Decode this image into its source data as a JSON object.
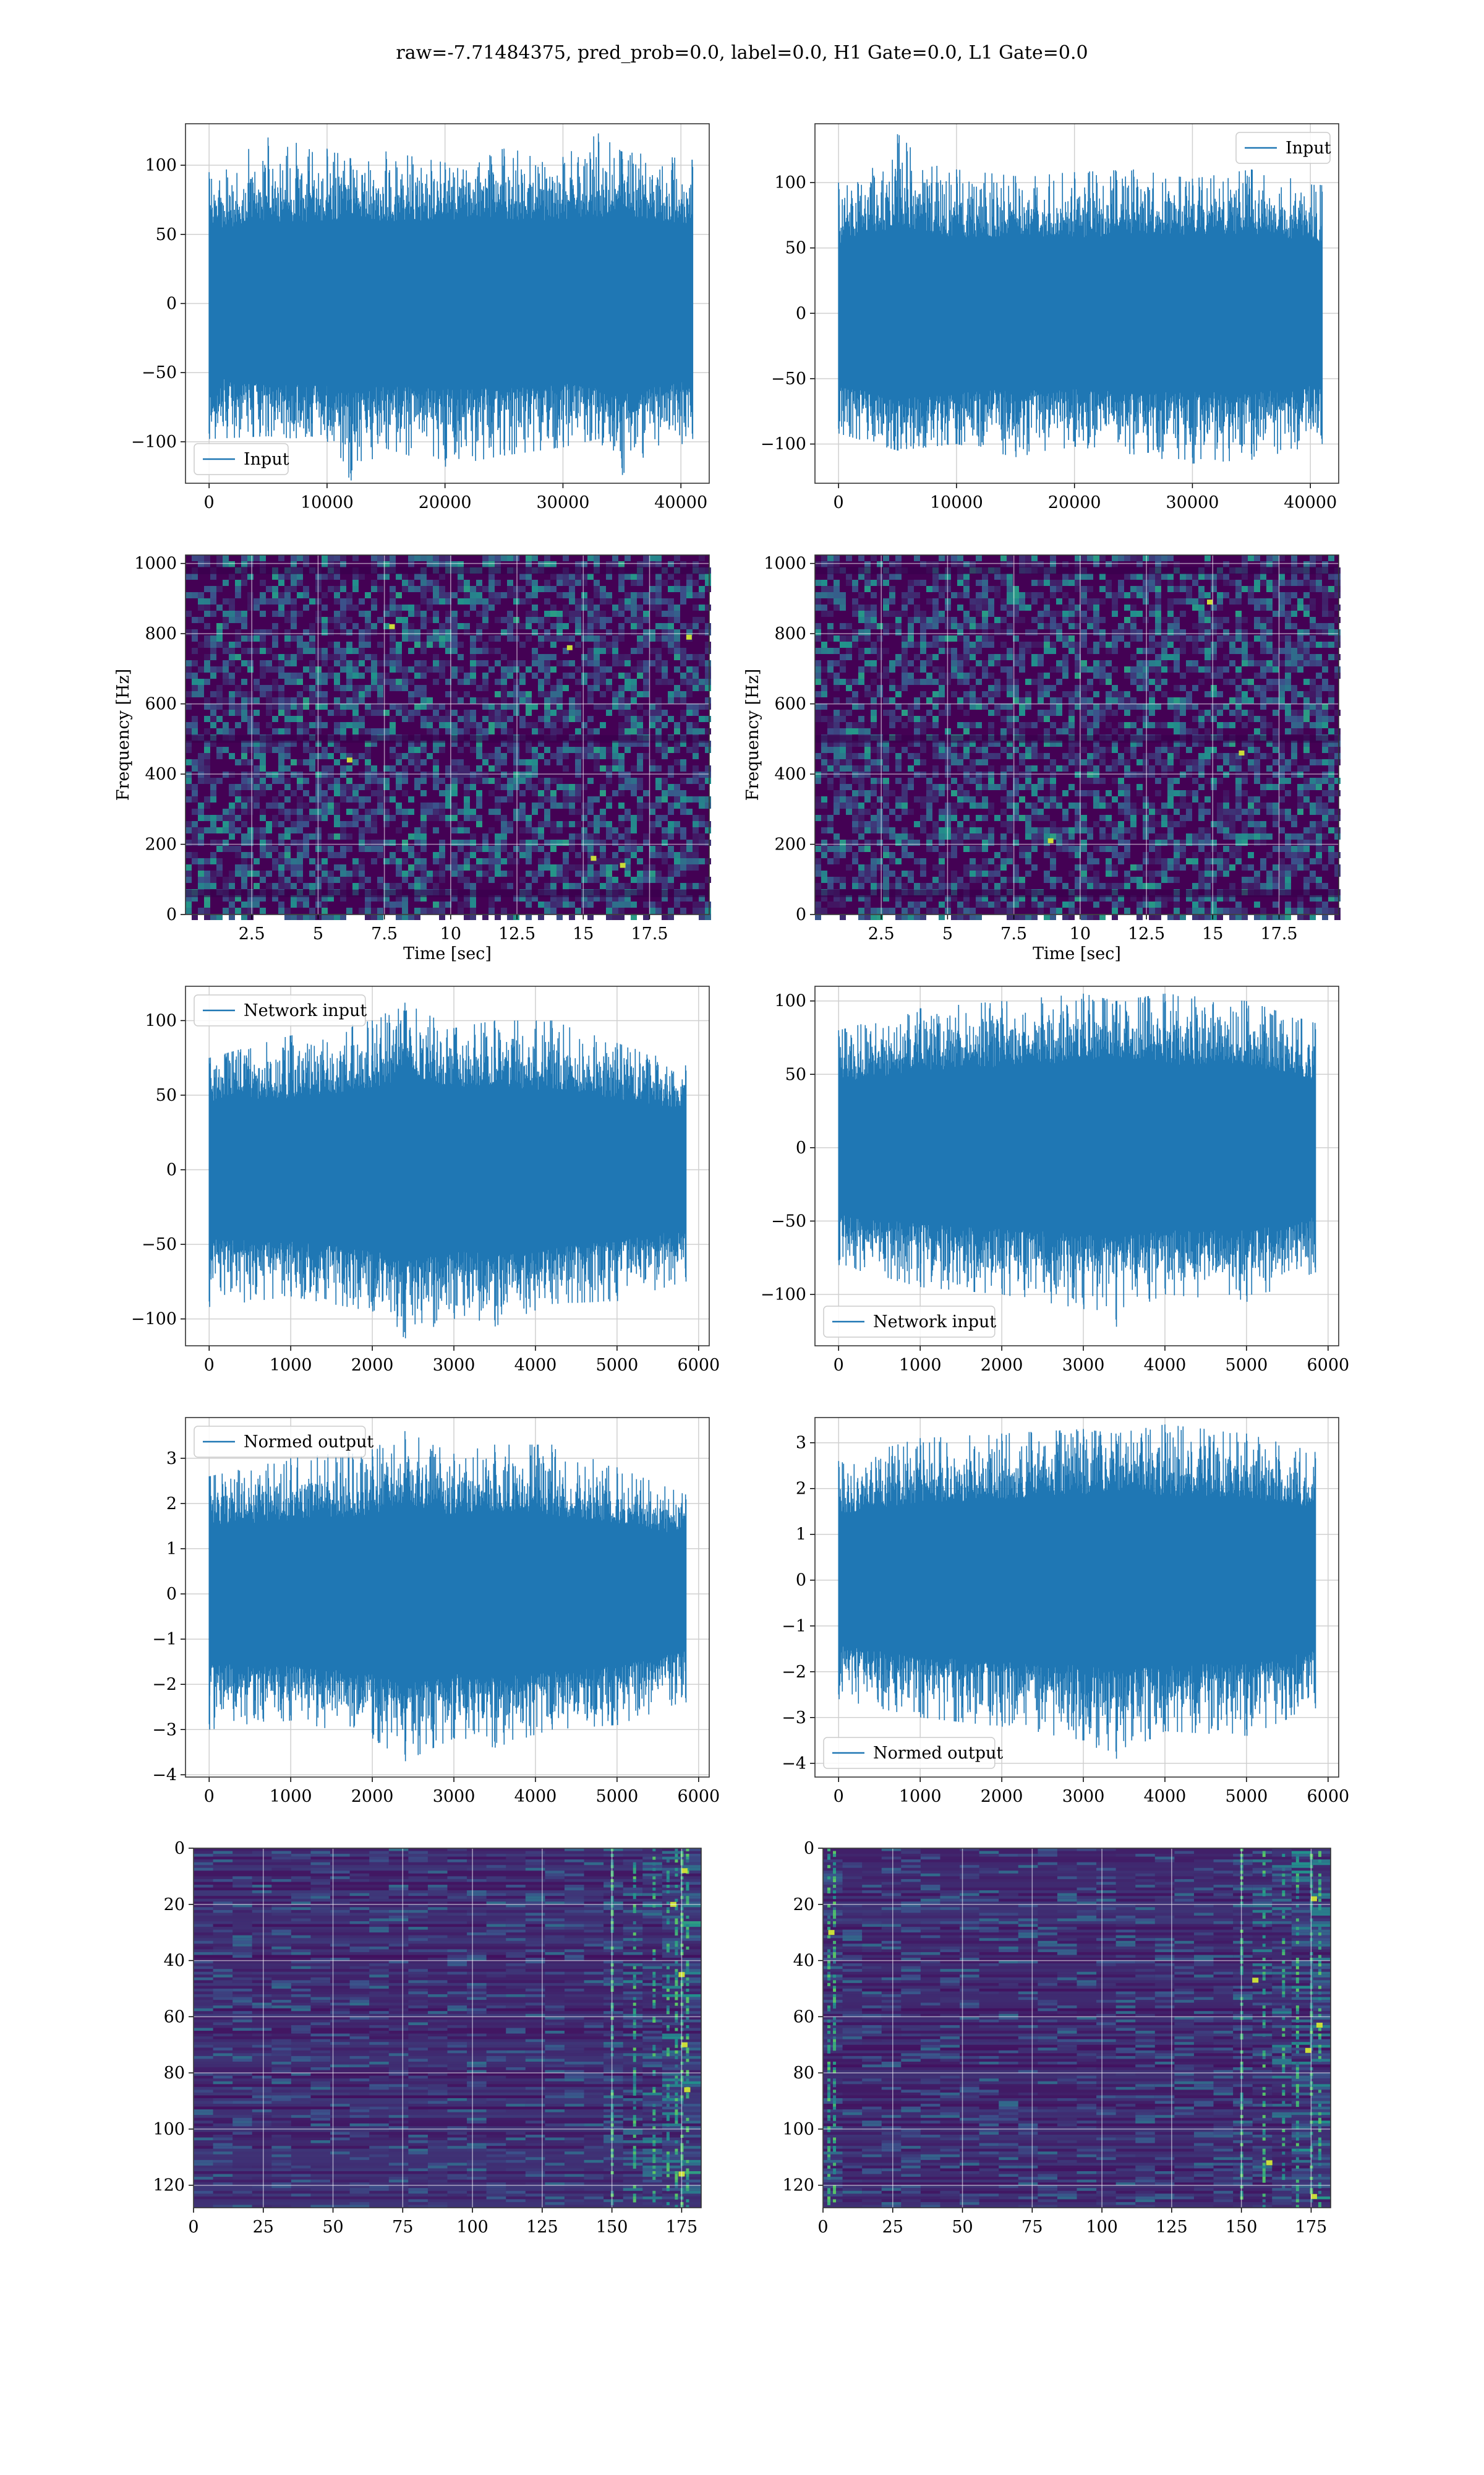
{
  "figure": {
    "suptitle": "raw=-7.71484375, pred_prob=0.0, label=0.0, H1 Gate=0.0, L1 Gate=0.0",
    "colors": {
      "line": "#1f77b4",
      "grid": "#d0d0d0",
      "spine": "#333333",
      "viridis_dark": "#440154",
      "viridis_mid": "#21918c",
      "viridis_bright": "#fde725"
    }
  },
  "chart_data": [
    {
      "id": "h1-input",
      "type": "line",
      "legend": "Input",
      "legend_loc": "lower left",
      "xlim": [
        -2000,
        42400
      ],
      "ylim": [
        -130,
        130
      ],
      "xticks": [
        0,
        10000,
        20000,
        30000,
        40000
      ],
      "yticks": [
        -100,
        -50,
        0,
        50,
        100
      ],
      "x_range": [
        0,
        40960
      ],
      "grid": true,
      "envelope": [
        {
          "x": 0,
          "min": -98,
          "max": 95
        },
        {
          "x": 5000,
          "min": -96,
          "max": 120
        },
        {
          "x": 10000,
          "min": -100,
          "max": 112
        },
        {
          "x": 12000,
          "min": -128,
          "max": 105
        },
        {
          "x": 15000,
          "min": -105,
          "max": 110
        },
        {
          "x": 20000,
          "min": -118,
          "max": 102
        },
        {
          "x": 25000,
          "min": -110,
          "max": 112
        },
        {
          "x": 30000,
          "min": -104,
          "max": 106
        },
        {
          "x": 33000,
          "min": -98,
          "max": 123
        },
        {
          "x": 35000,
          "min": -124,
          "max": 110
        },
        {
          "x": 40960,
          "min": -98,
          "max": 104
        }
      ]
    },
    {
      "id": "l1-input",
      "type": "line",
      "legend": "Input",
      "legend_loc": "upper right",
      "xlim": [
        -2000,
        42400
      ],
      "ylim": [
        -130,
        145
      ],
      "xticks": [
        0,
        10000,
        20000,
        30000,
        40000
      ],
      "yticks": [
        -100,
        -50,
        0,
        50,
        100
      ],
      "x_range": [
        0,
        40960
      ],
      "grid": true,
      "envelope": [
        {
          "x": 0,
          "min": -92,
          "max": 100
        },
        {
          "x": 5000,
          "min": -105,
          "max": 137
        },
        {
          "x": 10000,
          "min": -100,
          "max": 110
        },
        {
          "x": 15000,
          "min": -110,
          "max": 105
        },
        {
          "x": 20000,
          "min": -102,
          "max": 108
        },
        {
          "x": 25000,
          "min": -108,
          "max": 110
        },
        {
          "x": 30000,
          "min": -115,
          "max": 103
        },
        {
          "x": 35000,
          "min": -112,
          "max": 110
        },
        {
          "x": 40960,
          "min": -100,
          "max": 98
        }
      ]
    },
    {
      "id": "h1-spectrogram",
      "type": "heatmap",
      "xlabel": "Time [sec]",
      "ylabel": "Frequency [Hz]",
      "xlim": [
        0,
        19.75
      ],
      "ylim": [
        0,
        1024
      ],
      "xticks": [
        2.5,
        5.0,
        7.5,
        10.0,
        12.5,
        15.0,
        17.5
      ],
      "yticks": [
        0,
        200,
        400,
        600,
        800,
        1000
      ],
      "colormap": "viridis",
      "hot_spots": [
        {
          "x": 14.5,
          "y": 760
        },
        {
          "x": 6.2,
          "y": 440
        },
        {
          "x": 16.5,
          "y": 140
        },
        {
          "x": 7.8,
          "y": 820
        },
        {
          "x": 19.0,
          "y": 790
        },
        {
          "x": 15.4,
          "y": 160
        }
      ]
    },
    {
      "id": "l1-spectrogram",
      "type": "heatmap",
      "xlabel": "Time [sec]",
      "ylabel": "Frequency [Hz]",
      "xlim": [
        0,
        19.75
      ],
      "ylim": [
        0,
        1024
      ],
      "xticks": [
        2.5,
        5.0,
        7.5,
        10.0,
        12.5,
        15.0,
        17.5
      ],
      "yticks": [
        0,
        200,
        400,
        600,
        800,
        1000
      ],
      "colormap": "viridis",
      "hot_spots": [
        {
          "x": 16.1,
          "y": 460
        },
        {
          "x": 14.9,
          "y": 890
        },
        {
          "x": 8.9,
          "y": 210
        }
      ]
    },
    {
      "id": "h1-network-input",
      "type": "line",
      "legend": "Network input",
      "legend_loc": "upper left",
      "xlim": [
        -290,
        6130
      ],
      "ylim": [
        -118,
        123
      ],
      "xticks": [
        0,
        1000,
        2000,
        3000,
        4000,
        5000,
        6000
      ],
      "yticks": [
        -100,
        -50,
        0,
        50,
        100
      ],
      "x_range": [
        0,
        5840
      ],
      "grid": true,
      "envelope": [
        {
          "x": 0,
          "min": -92,
          "max": 75
        },
        {
          "x": 1000,
          "min": -85,
          "max": 90
        },
        {
          "x": 2000,
          "min": -95,
          "max": 100
        },
        {
          "x": 2400,
          "min": -113,
          "max": 112
        },
        {
          "x": 3000,
          "min": -100,
          "max": 95
        },
        {
          "x": 3500,
          "min": -105,
          "max": 100
        },
        {
          "x": 4200,
          "min": -90,
          "max": 100
        },
        {
          "x": 5000,
          "min": -88,
          "max": 85
        },
        {
          "x": 5840,
          "min": -75,
          "max": 70
        }
      ]
    },
    {
      "id": "l1-network-input",
      "type": "line",
      "legend": "Network input",
      "legend_loc": "lower left",
      "xlim": [
        -290,
        6130
      ],
      "ylim": [
        -135,
        110
      ],
      "xticks": [
        0,
        1000,
        2000,
        3000,
        4000,
        5000,
        6000
      ],
      "yticks": [
        -100,
        -50,
        0,
        50,
        100
      ],
      "x_range": [
        0,
        5840
      ],
      "grid": true,
      "envelope": [
        {
          "x": 0,
          "min": -80,
          "max": 80
        },
        {
          "x": 1000,
          "min": -95,
          "max": 95
        },
        {
          "x": 2000,
          "min": -100,
          "max": 100
        },
        {
          "x": 3000,
          "min": -110,
          "max": 105
        },
        {
          "x": 3400,
          "min": -122,
          "max": 100
        },
        {
          "x": 4000,
          "min": -100,
          "max": 105
        },
        {
          "x": 5000,
          "min": -105,
          "max": 100
        },
        {
          "x": 5840,
          "min": -85,
          "max": 85
        }
      ]
    },
    {
      "id": "h1-normed-output",
      "type": "line",
      "legend": "Normed output",
      "legend_loc": "upper left",
      "xlim": [
        -290,
        6130
      ],
      "ylim": [
        -4.05,
        3.9
      ],
      "xticks": [
        0,
        1000,
        2000,
        3000,
        4000,
        5000,
        6000
      ],
      "yticks": [
        -4,
        -3,
        -2,
        -1,
        0,
        1,
        2,
        3
      ],
      "x_range": [
        0,
        5840
      ],
      "grid": true,
      "envelope": [
        {
          "x": 0,
          "min": -3.0,
          "max": 2.6
        },
        {
          "x": 1000,
          "min": -2.8,
          "max": 3.0
        },
        {
          "x": 2000,
          "min": -3.2,
          "max": 3.2
        },
        {
          "x": 2400,
          "min": -3.7,
          "max": 3.6
        },
        {
          "x": 3000,
          "min": -3.2,
          "max": 3.1
        },
        {
          "x": 3500,
          "min": -3.4,
          "max": 3.3
        },
        {
          "x": 4200,
          "min": -3.0,
          "max": 3.3
        },
        {
          "x": 5000,
          "min": -2.9,
          "max": 2.8
        },
        {
          "x": 5840,
          "min": -2.4,
          "max": 2.2
        }
      ]
    },
    {
      "id": "l1-normed-output",
      "type": "line",
      "legend": "Normed output",
      "legend_loc": "lower left",
      "xlim": [
        -290,
        6130
      ],
      "ylim": [
        -4.3,
        3.55
      ],
      "xticks": [
        0,
        1000,
        2000,
        3000,
        4000,
        5000,
        6000
      ],
      "yticks": [
        -4,
        -3,
        -2,
        -1,
        0,
        1,
        2,
        3
      ],
      "x_range": [
        0,
        5840
      ],
      "grid": true,
      "envelope": [
        {
          "x": 0,
          "min": -2.6,
          "max": 2.6
        },
        {
          "x": 1000,
          "min": -3.0,
          "max": 3.1
        },
        {
          "x": 2000,
          "min": -3.2,
          "max": 3.2
        },
        {
          "x": 3000,
          "min": -3.5,
          "max": 3.3
        },
        {
          "x": 3400,
          "min": -3.9,
          "max": 3.2
        },
        {
          "x": 4000,
          "min": -3.3,
          "max": 3.4
        },
        {
          "x": 5000,
          "min": -3.4,
          "max": 3.2
        },
        {
          "x": 5840,
          "min": -2.8,
          "max": 2.8
        }
      ]
    },
    {
      "id": "h1-feature-map",
      "type": "heatmap",
      "xlim": [
        0,
        182
      ],
      "ylim": [
        128,
        0
      ],
      "xticks": [
        0,
        25,
        50,
        75,
        100,
        125,
        150,
        175
      ],
      "yticks": [
        0,
        20,
        40,
        60,
        80,
        100,
        120
      ],
      "colormap": "viridis",
      "hot_columns": [
        150,
        158,
        165,
        170,
        173,
        175,
        177
      ],
      "hot_spots": [
        {
          "x": 176,
          "y": 8
        },
        {
          "x": 175,
          "y": 45
        },
        {
          "x": 176,
          "y": 70
        },
        {
          "x": 177,
          "y": 86
        },
        {
          "x": 175,
          "y": 116
        },
        {
          "x": 172,
          "y": 20
        }
      ]
    },
    {
      "id": "l1-feature-map",
      "type": "heatmap",
      "xlim": [
        0,
        182
      ],
      "ylim": [
        128,
        0
      ],
      "xticks": [
        0,
        25,
        50,
        75,
        100,
        125,
        150,
        175
      ],
      "yticks": [
        0,
        20,
        40,
        60,
        80,
        100,
        120
      ],
      "colormap": "viridis",
      "hot_columns": [
        2,
        4,
        150,
        158,
        165,
        170,
        175,
        178
      ],
      "hot_spots": [
        {
          "x": 3,
          "y": 30
        },
        {
          "x": 176,
          "y": 18
        },
        {
          "x": 178,
          "y": 63
        },
        {
          "x": 174,
          "y": 72
        },
        {
          "x": 176,
          "y": 124
        },
        {
          "x": 160,
          "y": 112
        },
        {
          "x": 155,
          "y": 47
        }
      ]
    }
  ]
}
